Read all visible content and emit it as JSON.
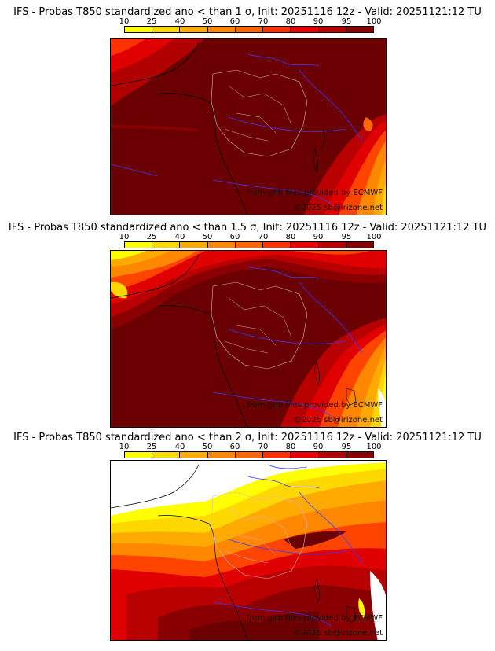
{
  "legend": {
    "ticks": [
      "10",
      "25",
      "40",
      "50",
      "60",
      "70",
      "80",
      "90",
      "95",
      "100"
    ],
    "colors": [
      "#ffff00",
      "#ffd800",
      "#ffaa00",
      "#ff8800",
      "#ff6600",
      "#ff3300",
      "#e80000",
      "#b80000",
      "#8a0000",
      "#600000"
    ]
  },
  "panels": [
    {
      "title": "IFS - Probas T850  standardized ano < than 1 σ, Init: 20251116 12z - Valid: 20251121:12 TU",
      "source_text": "from grib files provided by ECMWF",
      "copyright_text": "©2025 sb@irizone.net",
      "threshold": "1 σ"
    },
    {
      "title": "IFS - Probas T850  standardized ano < than 1.5 σ, Init: 20251116 12z - Valid: 20251121:12 TU",
      "source_text": "from grib files provided by ECMWF",
      "copyright_text": "©2025 sb@irizone.net",
      "threshold": "1.5 σ"
    },
    {
      "title": "IFS - Probas T850  standardized ano < than 2 σ, Init: 20251116 12z - Valid: 20251121:12 TU",
      "source_text": "from grib files provided by ECMWF",
      "copyright_text": "©2025 sb@irizone.net",
      "threshold": "2 σ"
    }
  ]
}
